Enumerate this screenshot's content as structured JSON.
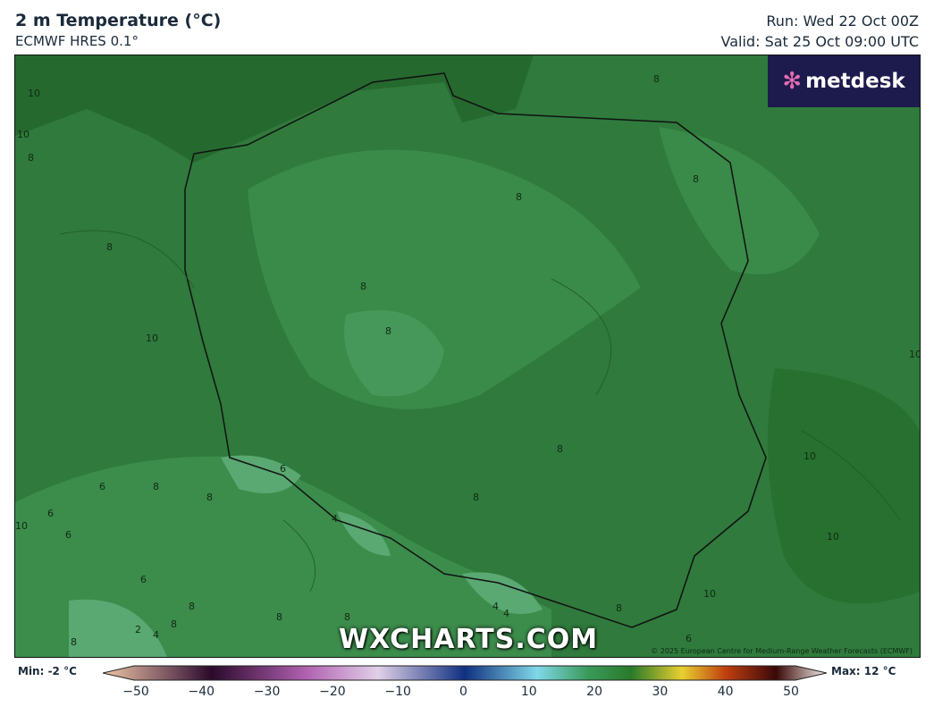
{
  "header": {
    "title": "2 m Temperature (°C)",
    "model": "ECMWF HRES 0.1°",
    "run": "Run: Wed 22 Oct 00Z",
    "valid": "Valid: Sat 25 Oct 09:00 UTC"
  },
  "logo": {
    "text": "metdesk"
  },
  "map": {
    "contour_labels": [
      "10",
      "10",
      "8",
      "8",
      "8",
      "8",
      "8",
      "10",
      "8",
      "8",
      "8",
      "10",
      "10",
      "6",
      "6",
      "8",
      "8",
      "6",
      "6",
      "6",
      "4",
      "8",
      "8",
      "2",
      "4",
      "8",
      "8",
      "8",
      "4",
      "4",
      "6",
      "8",
      "10",
      "10",
      "10",
      "8"
    ],
    "colors": {
      "base": "#2f7a3c",
      "light": "#3f9150",
      "dark": "#25692f",
      "mountain": "#5aa872"
    }
  },
  "watermark": "WXCHARTS.COM",
  "copyright": "© 2025 European Centre for Medium-Range Weather Forecasts (ECMWF)",
  "colorbar": {
    "min_label": "Min: -2 °C",
    "max_label": "Max: 12 °C",
    "ticks": [
      "−50",
      "−40",
      "−30",
      "−20",
      "−10",
      "0",
      "10",
      "20",
      "30",
      "40",
      "50"
    ],
    "range": [
      -50,
      50
    ],
    "unit": "°C"
  }
}
